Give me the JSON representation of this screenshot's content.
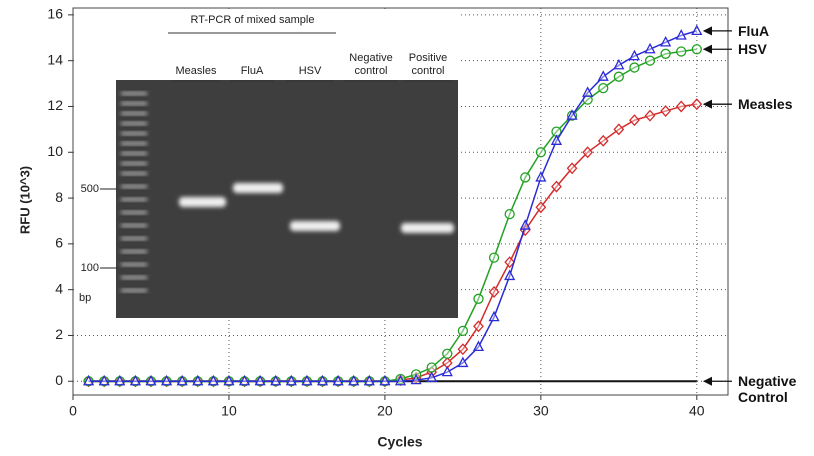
{
  "chart_data": {
    "type": "line",
    "x_label": "Cycles",
    "y_label": "RFU (10^3)",
    "x": [
      1,
      2,
      3,
      4,
      5,
      6,
      7,
      8,
      9,
      10,
      11,
      12,
      13,
      14,
      15,
      16,
      17,
      18,
      19,
      20,
      21,
      22,
      23,
      24,
      25,
      26,
      27,
      28,
      29,
      30,
      31,
      32,
      33,
      34,
      35,
      36,
      37,
      38,
      39,
      40
    ],
    "series": [
      {
        "name": "FluA",
        "color": "#2b2bd6",
        "marker": "triangle",
        "values": [
          0,
          0,
          0,
          0,
          0,
          0,
          0,
          0,
          0,
          0,
          0,
          0,
          0,
          0,
          0,
          0,
          0,
          0,
          0,
          0,
          0,
          0.05,
          0.15,
          0.4,
          0.8,
          1.5,
          2.8,
          4.6,
          6.8,
          8.9,
          10.5,
          11.6,
          12.6,
          13.3,
          13.8,
          14.2,
          14.5,
          14.8,
          15.1,
          15.3
        ]
      },
      {
        "name": "HSV",
        "color": "#22a022",
        "marker": "circle",
        "values": [
          0,
          0,
          0,
          0,
          0,
          0,
          0,
          0,
          0,
          0,
          0,
          0,
          0,
          0,
          0,
          0,
          0,
          0,
          0,
          0,
          0.1,
          0.3,
          0.6,
          1.2,
          2.2,
          3.6,
          5.4,
          7.3,
          8.9,
          10.0,
          10.9,
          11.6,
          12.3,
          12.8,
          13.3,
          13.7,
          14.0,
          14.3,
          14.4,
          14.5
        ]
      },
      {
        "name": "Measles",
        "color": "#d42a2a",
        "marker": "diamond",
        "values": [
          0,
          0,
          0,
          0,
          0,
          0,
          0,
          0,
          0,
          0,
          0,
          0,
          0,
          0,
          0,
          0,
          0,
          0,
          0,
          0,
          0.05,
          0.15,
          0.4,
          0.8,
          1.4,
          2.4,
          3.9,
          5.2,
          6.6,
          7.6,
          8.5,
          9.3,
          10.0,
          10.5,
          11.0,
          11.4,
          11.6,
          11.8,
          12.0,
          12.1
        ]
      },
      {
        "name": "Negative Control",
        "color": "#111111",
        "values": [
          0,
          0,
          0,
          0,
          0,
          0,
          0,
          0,
          0,
          0,
          0,
          0,
          0,
          0,
          0,
          0,
          0,
          0,
          0,
          0,
          0,
          0,
          0,
          0,
          0,
          0,
          0,
          0,
          0,
          0,
          0,
          0,
          0,
          0,
          0,
          0,
          0,
          0,
          0,
          0
        ]
      }
    ],
    "xlim": [
      0,
      42
    ],
    "xticks": [
      0,
      10,
      20,
      30,
      40
    ],
    "ylim": [
      -0.6,
      16.3
    ],
    "yticks": [
      0,
      2,
      4,
      6,
      8,
      10,
      12,
      14,
      16
    ],
    "grid": true,
    "inset": {
      "title": "RT-PCR of mixed sample",
      "lanes": [
        "Measles",
        "FluA",
        "HSV",
        "Negative control",
        "Positive control"
      ],
      "ladder_labels": [
        500,
        100
      ],
      "unit": "bp"
    }
  }
}
